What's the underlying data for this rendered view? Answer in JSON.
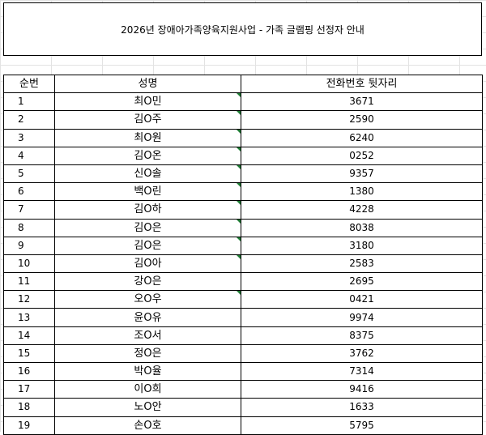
{
  "title": "2026년 장애아가족양육지원사업 - 가족 글램핑 선정자 안내",
  "columns": {
    "seq": "순번",
    "name": "성명",
    "phone": "전화번호 뒷자리"
  },
  "rows": [
    {
      "seq": "1",
      "name": "최O민",
      "phone": "3671",
      "flag": true
    },
    {
      "seq": "2",
      "name": "김O주",
      "phone": "2590",
      "flag": true
    },
    {
      "seq": "3",
      "name": "최O원",
      "phone": "6240",
      "flag": true
    },
    {
      "seq": "4",
      "name": "김O온",
      "phone": "0252",
      "flag": true
    },
    {
      "seq": "5",
      "name": "신O솔",
      "phone": "9357",
      "flag": true
    },
    {
      "seq": "6",
      "name": "백O린",
      "phone": "1380",
      "flag": true
    },
    {
      "seq": "7",
      "name": "김O하",
      "phone": "4228",
      "flag": true
    },
    {
      "seq": "8",
      "name": "김O은",
      "phone": "8038",
      "flag": true
    },
    {
      "seq": "9",
      "name": "김O은",
      "phone": "3180",
      "flag": true
    },
    {
      "seq": "10",
      "name": "김O아",
      "phone": "2583",
      "flag": true
    },
    {
      "seq": "11",
      "name": "강O은",
      "phone": "2695",
      "flag": false
    },
    {
      "seq": "12",
      "name": "오O우",
      "phone": "0421",
      "flag": true
    },
    {
      "seq": "13",
      "name": "윤O유",
      "phone": "9974",
      "flag": false
    },
    {
      "seq": "14",
      "name": "조O서",
      "phone": "8375",
      "flag": false
    },
    {
      "seq": "15",
      "name": "정O은",
      "phone": "3762",
      "flag": false
    },
    {
      "seq": "16",
      "name": "박O율",
      "phone": "7314",
      "flag": false
    },
    {
      "seq": "17",
      "name": "이O희",
      "phone": "9416",
      "flag": false
    },
    {
      "seq": "18",
      "name": "노O안",
      "phone": "1633",
      "flag": false
    },
    {
      "seq": "19",
      "name": "손O호",
      "phone": "5795",
      "flag": false
    }
  ],
  "colors": {
    "flag": "#1e7b34",
    "grid": "#e3e3e3"
  }
}
